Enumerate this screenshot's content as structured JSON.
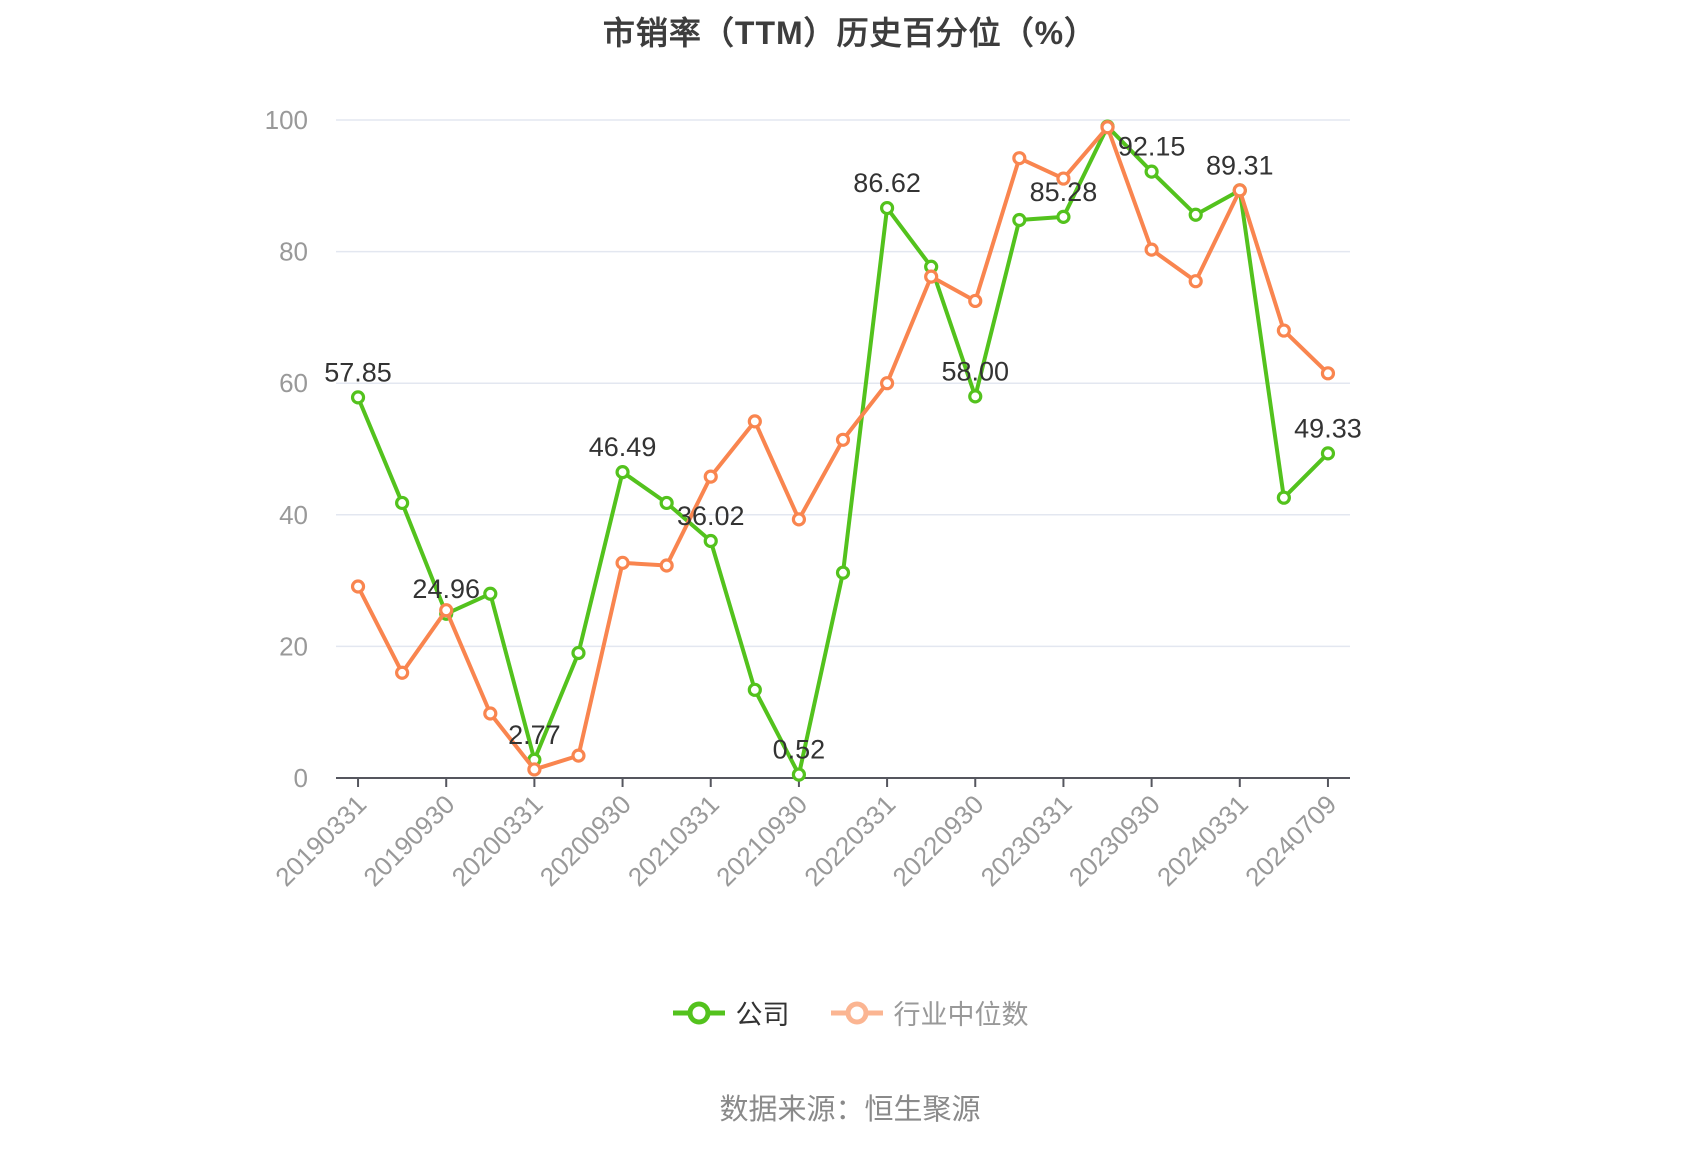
{
  "title": "市销率（TTM）历史百分位（%）",
  "source": "数据来源：恒生聚源",
  "legend": {
    "items": [
      {
        "label": "公司",
        "icon_color": "#53C21D",
        "label_color": "#333333"
      },
      {
        "label": "行业中位数",
        "icon_color": "#FBB592",
        "label_color": "#999999"
      }
    ]
  },
  "colors": {
    "background": "#FFFFFF",
    "gridline": "#E3E7F0",
    "axis": "#55565E",
    "axis_label": "#999999",
    "data_label": "#333333",
    "title": "#3D3D3D",
    "source": "#8A8A8A",
    "company": "#53C21D",
    "industry": "#F9854F"
  },
  "chart_data": {
    "type": "line",
    "title": "市销率（TTM）历史百分位（%）",
    "xlabel": "",
    "ylabel": "",
    "ylim": [
      0,
      100
    ],
    "yticks": [
      0,
      20,
      40,
      60,
      80,
      100
    ],
    "ytick_labels": [
      "0",
      "20",
      "40",
      "60",
      "80",
      "100"
    ],
    "grid": true,
    "legend_position": "bottom",
    "categories": [
      "20190331",
      "20190630",
      "20190930",
      "20191231",
      "20200331",
      "20200630",
      "20200930",
      "20201231",
      "20210331",
      "20210630",
      "20210930",
      "20211231",
      "20220331",
      "20220630",
      "20220930",
      "20221231",
      "20230331",
      "20230630",
      "20230930",
      "20231231",
      "20240331",
      "20240630",
      "20240709"
    ],
    "xtick_indices": [
      0,
      2,
      4,
      6,
      8,
      10,
      12,
      14,
      16,
      18,
      20,
      22
    ],
    "xtick_labels": [
      "20190331",
      "20190930",
      "20200331",
      "20200930",
      "20210331",
      "20210930",
      "20220331",
      "20220930",
      "20230331",
      "20230930",
      "20240331",
      "20240709"
    ],
    "series": [
      {
        "name": "公司",
        "color": "#53C21D",
        "values": [
          57.85,
          41.8,
          24.96,
          28.0,
          2.77,
          19.0,
          46.49,
          41.8,
          36.02,
          13.4,
          0.52,
          31.2,
          86.62,
          77.7,
          58.0,
          84.8,
          85.28,
          99.0,
          92.15,
          85.6,
          89.31,
          42.6,
          49.33
        ],
        "point_labels": [
          "57.85",
          null,
          "24.96",
          null,
          "2.77",
          null,
          "46.49",
          null,
          "36.02",
          null,
          "0.52",
          null,
          "86.62",
          null,
          "58.00",
          null,
          "85.28",
          null,
          "92.15",
          null,
          "89.31",
          null,
          "49.33"
        ]
      },
      {
        "name": "行业中位数",
        "color": "#F9854F",
        "values": [
          29.1,
          16.0,
          25.5,
          9.8,
          1.3,
          3.4,
          32.7,
          32.3,
          45.8,
          54.2,
          39.3,
          51.4,
          60.0,
          76.2,
          72.5,
          94.2,
          91.1,
          98.9,
          80.3,
          75.5,
          89.3,
          68.0,
          61.5
        ],
        "point_labels": null
      }
    ]
  }
}
